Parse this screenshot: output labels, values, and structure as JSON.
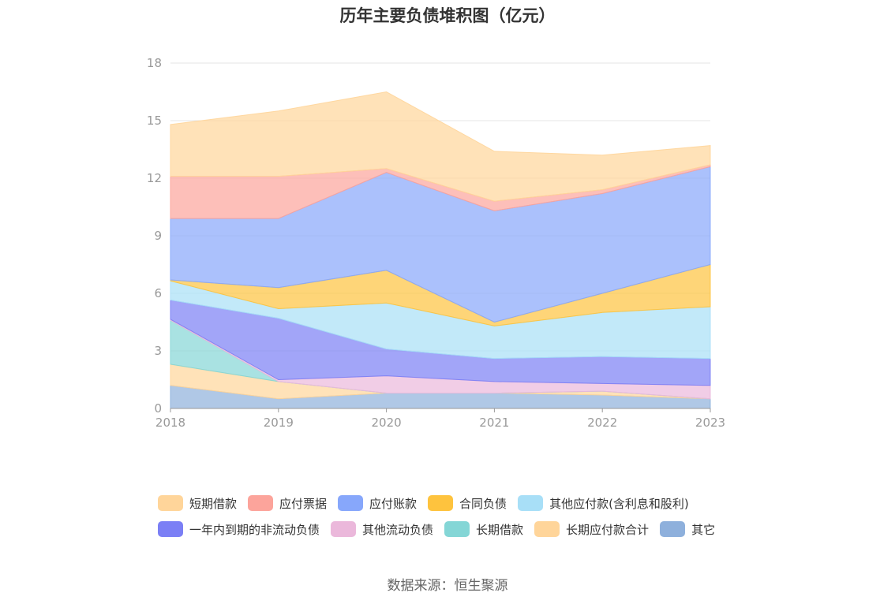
{
  "source_text": "数据来源：恒生聚源",
  "chart_data": {
    "type": "area",
    "stacked": true,
    "title": "历年主要负债堆积图（亿元）",
    "x": [
      "2018",
      "2019",
      "2020",
      "2021",
      "2022",
      "2023"
    ],
    "ylim": [
      0,
      18
    ],
    "yticks": [
      0,
      3,
      6,
      9,
      12,
      15,
      18
    ],
    "grid": true,
    "legend_position": "bottom",
    "series": [
      {
        "name": "其它",
        "color": "#8eb0dc",
        "values": [
          1.2,
          0.5,
          0.8,
          0.8,
          0.7,
          0.5
        ]
      },
      {
        "name": "长期应付款合计",
        "color": "#ffd59a",
        "values": [
          1.1,
          0.9,
          0.0,
          0.0,
          0.2,
          0.0
        ]
      },
      {
        "name": "长期借款",
        "color": "#84d6d6",
        "values": [
          2.3,
          0.0,
          0.0,
          0.0,
          0.0,
          0.0
        ]
      },
      {
        "name": "其他流动负债",
        "color": "#ebb8db",
        "values": [
          0.05,
          0.1,
          0.9,
          0.6,
          0.4,
          0.7
        ]
      },
      {
        "name": "一年内到期的非流动负债",
        "color": "#7b7ff5",
        "values": [
          1.0,
          3.2,
          1.4,
          1.2,
          1.4,
          1.4
        ]
      },
      {
        "name": "其他应付款(含利息和股利)",
        "color": "#a8dff7",
        "values": [
          1.0,
          0.5,
          2.4,
          1.7,
          2.3,
          2.7
        ]
      },
      {
        "name": "合同负债",
        "color": "#fec33e",
        "values": [
          0.05,
          1.1,
          1.7,
          0.2,
          1.0,
          2.2
        ]
      },
      {
        "name": "应付账款",
        "color": "#87a7fb",
        "values": [
          3.2,
          3.6,
          5.1,
          5.8,
          5.2,
          5.1
        ]
      },
      {
        "name": "应付票据",
        "color": "#fca49b",
        "values": [
          2.2,
          2.2,
          0.2,
          0.5,
          0.2,
          0.1
        ]
      },
      {
        "name": "短期借款",
        "color": "#ffd59a",
        "values": [
          2.7,
          3.4,
          4.0,
          2.6,
          1.8,
          1.0
        ]
      }
    ],
    "legend_order": [
      "短期借款",
      "应付票据",
      "应付账款",
      "合同负债",
      "其他应付款(含利息和股利)",
      "一年内到期的非流动负债",
      "其他流动负债",
      "长期借款",
      "长期应付款合计",
      "其它"
    ]
  }
}
